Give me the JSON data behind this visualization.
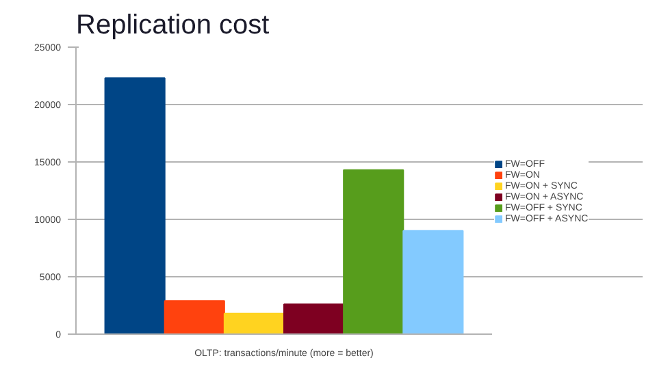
{
  "chart_data": {
    "type": "bar",
    "title": "Replication cost",
    "categories": [
      "OLTP: transactions/minute (more = better)"
    ],
    "series": [
      {
        "name": "FW=OFF",
        "color": "#004586",
        "values": [
          22300
        ]
      },
      {
        "name": "FW=ON",
        "color": "#ff420e",
        "values": [
          2900
        ]
      },
      {
        "name": "FW=ON + SYNC",
        "color": "#ffd320",
        "values": [
          1800
        ]
      },
      {
        "name": "FW=ON + ASYNC",
        "color": "#7e0021",
        "values": [
          2600
        ]
      },
      {
        "name": "FW=OFF + SYNC",
        "color": "#579d1c",
        "values": [
          14300
        ]
      },
      {
        "name": "FW=OFF + ASYNC",
        "color": "#83caff",
        "values": [
          9000
        ]
      }
    ],
    "ylim": [
      0,
      25000
    ],
    "yticks": [
      0,
      5000,
      10000,
      15000,
      20000,
      25000
    ],
    "grid": "y",
    "legend": "right"
  }
}
